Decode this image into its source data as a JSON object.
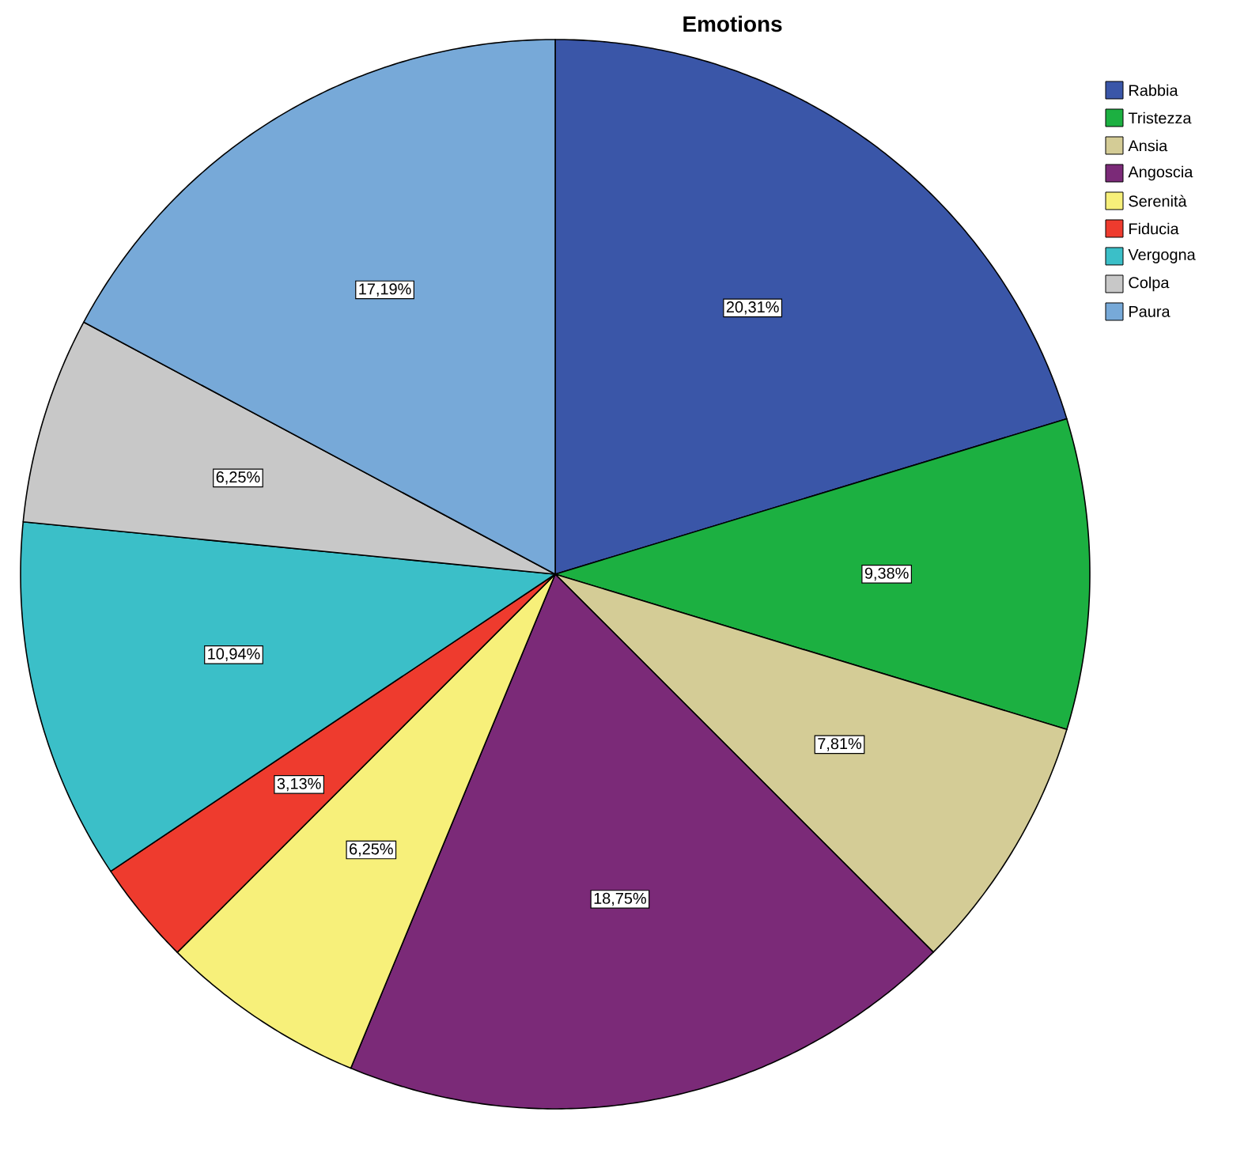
{
  "chart_data": {
    "type": "pie",
    "title": "Emotions",
    "categories": [
      "Rabbia",
      "Tristezza",
      "Ansia",
      "Angoscia",
      "Serenità",
      "Fiducia",
      "Vergogna",
      "Colpa",
      "Paura"
    ],
    "values": [
      20.31,
      9.38,
      7.81,
      18.75,
      6.25,
      3.13,
      10.94,
      6.25,
      17.19
    ],
    "value_labels": [
      "20,31%",
      "9,38%",
      "7,81%",
      "18,75%",
      "6,25%",
      "3,13%",
      "10,94%",
      "6,25%",
      "17,19%"
    ],
    "colors": [
      "#3a56a8",
      "#1cb041",
      "#d4cc96",
      "#7b2a78",
      "#f7f07a",
      "#ee3b2e",
      "#3bbfc8",
      "#c8c8c8",
      "#77a9d8"
    ],
    "legend": "top right"
  }
}
